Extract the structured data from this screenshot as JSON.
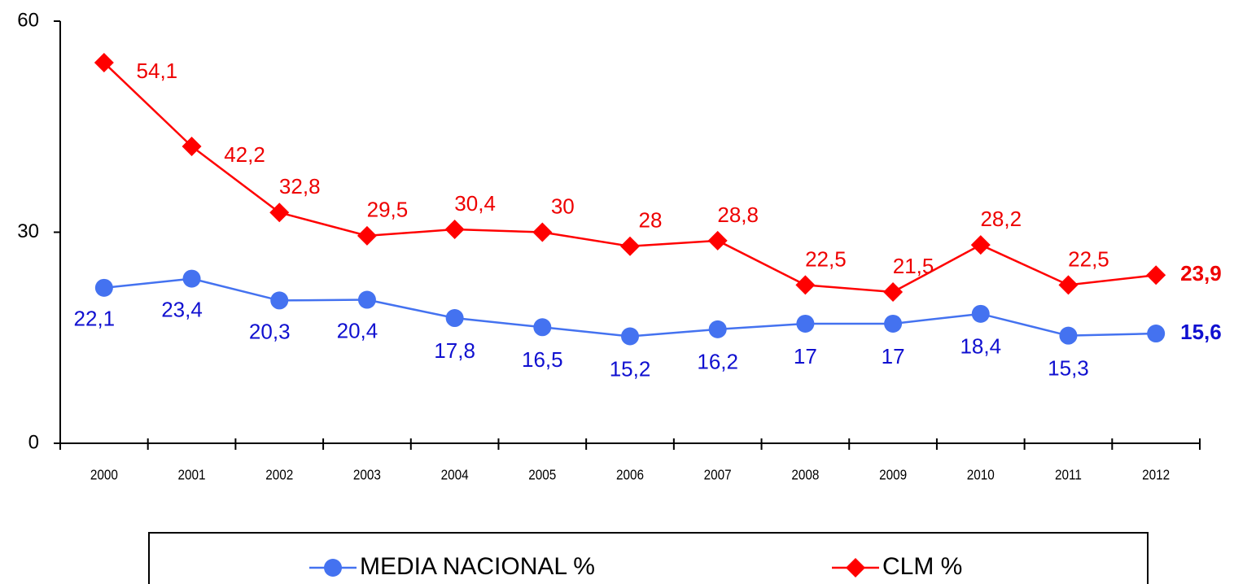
{
  "chart_data": {
    "type": "line",
    "categories": [
      "2000",
      "2001",
      "2002",
      "2003",
      "2004",
      "2005",
      "2006",
      "2007",
      "2008",
      "2009",
      "2010",
      "2011",
      "2012"
    ],
    "series": [
      {
        "name": "MEDIA NACIONAL %",
        "color": "#4472f0",
        "label_color": "#1010d0",
        "marker": "circle",
        "values": [
          22.1,
          23.4,
          20.3,
          20.4,
          17.8,
          16.5,
          15.2,
          16.2,
          17,
          17,
          18.4,
          15.3,
          15.6
        ],
        "value_labels": [
          "22,1",
          "23,4",
          "20,3",
          "20,4",
          "17,8",
          "16,5",
          "15,2",
          "16,2",
          "17",
          "17",
          "18,4",
          "15,3",
          "15,6"
        ]
      },
      {
        "name": "CLM %",
        "color": "#ff0000",
        "label_color": "#ee0000",
        "marker": "diamond",
        "values": [
          54.1,
          42.2,
          32.8,
          29.5,
          30.4,
          30,
          28,
          28.8,
          22.5,
          21.5,
          28.2,
          22.5,
          23.9
        ],
        "value_labels": [
          "54,1",
          "42,2",
          "32,8",
          "29,5",
          "30,4",
          "30",
          "28",
          "28,8",
          "22,5",
          "21,5",
          "28,2",
          "22,5",
          "23,9"
        ]
      }
    ],
    "ylim": [
      0,
      60
    ],
    "yticks": [
      0,
      30,
      60
    ],
    "legend": "bottom"
  }
}
